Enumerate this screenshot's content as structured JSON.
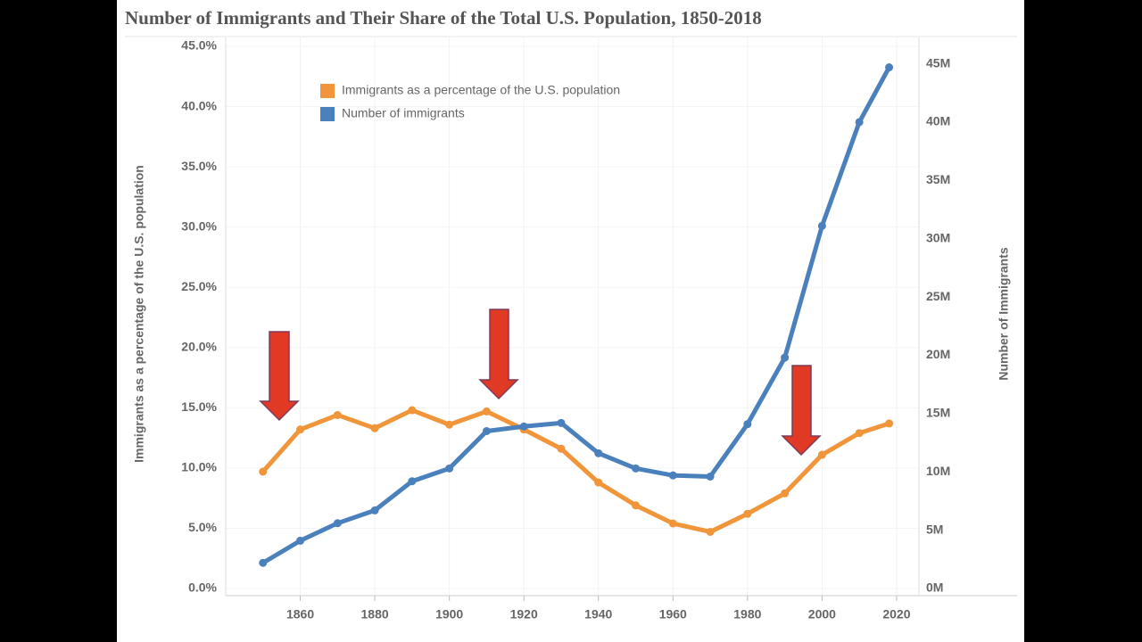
{
  "chart_data": {
    "type": "line",
    "title": "Number of Immigrants and Their Share of the Total U.S. Population, 1850-2018",
    "y_label": "Immigrants as a percentage of the U.S. population",
    "y2_label": "Number of Immigrants",
    "x": [
      1850,
      1860,
      1870,
      1880,
      1890,
      1900,
      1910,
      1920,
      1930,
      1940,
      1950,
      1960,
      1970,
      1980,
      1990,
      2000,
      2010,
      2018
    ],
    "series": [
      {
        "name": "Immigrants as a percentage of the U.S. population",
        "color": "#f0953a",
        "axis": "y",
        "values": [
          9.7,
          13.2,
          14.4,
          13.3,
          14.8,
          13.6,
          14.7,
          13.2,
          11.6,
          8.8,
          6.9,
          5.4,
          4.7,
          6.2,
          7.9,
          11.1,
          12.9,
          13.7
        ]
      },
      {
        "name": "Number of immigrants",
        "color": "#4a80bc",
        "axis": "y2",
        "values": [
          2.2,
          4.1,
          5.6,
          6.7,
          9.2,
          10.3,
          13.5,
          13.9,
          14.2,
          11.6,
          10.3,
          9.7,
          9.6,
          14.1,
          19.8,
          31.1,
          40.0,
          44.7
        ]
      }
    ],
    "xlim": [
      1840,
      2026
    ],
    "xticks": [
      1860,
      1880,
      1900,
      1920,
      1940,
      1960,
      1980,
      2000,
      2020
    ],
    "ylim": [
      0,
      45
    ],
    "yticks": [
      {
        "value": 0,
        "label": "0.0%"
      },
      {
        "value": 5,
        "label": "5.0%"
      },
      {
        "value": 10,
        "label": "10.0%"
      },
      {
        "value": 15,
        "label": "15.0%"
      },
      {
        "value": 20,
        "label": "20.0%"
      },
      {
        "value": 25,
        "label": "25.0%"
      },
      {
        "value": 30,
        "label": "30.0%"
      },
      {
        "value": 35,
        "label": "35.0%"
      },
      {
        "value": 40,
        "label": "40.0%"
      },
      {
        "value": 45,
        "label": "45.0%"
      }
    ],
    "y2lim": [
      0,
      46.5
    ],
    "y2ticks": [
      {
        "value": 0,
        "label": "0M"
      },
      {
        "value": 5,
        "label": "5M"
      },
      {
        "value": 10,
        "label": "10M"
      },
      {
        "value": 15,
        "label": "15M"
      },
      {
        "value": 20,
        "label": "20M"
      },
      {
        "value": 25,
        "label": "25M"
      },
      {
        "value": 30,
        "label": "30M"
      },
      {
        "value": 35,
        "label": "35M"
      },
      {
        "value": 40,
        "label": "40M"
      },
      {
        "value": 45,
        "label": "45M"
      }
    ],
    "grid": true,
    "legend": "top-left"
  }
}
